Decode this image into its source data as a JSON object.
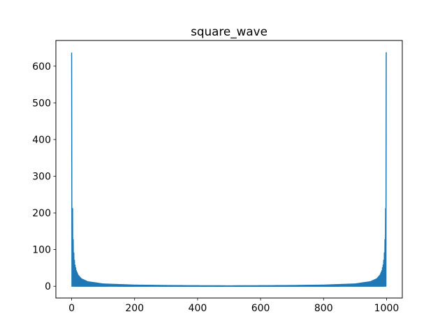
{
  "chart_data": {
    "type": "line",
    "title": "square_wave",
    "xlabel": "",
    "ylabel": "",
    "xlim": [
      -50,
      1050
    ],
    "ylim": [
      -32,
      670
    ],
    "x_ticks": [
      0,
      200,
      400,
      600,
      800,
      1000
    ],
    "y_ticks": [
      0,
      100,
      200,
      300,
      400,
      500,
      600
    ],
    "grid": false,
    "legend": "none",
    "n_points": 1001,
    "series": [
      {
        "color": "#1f77b4",
        "x": [
          0,
          1,
          3,
          5,
          7,
          9,
          11,
          15,
          21,
          31,
          51,
          101,
          201,
          301,
          401,
          499,
          501,
          599,
          699,
          799,
          899,
          949,
          969,
          979,
          985,
          989,
          991,
          993,
          995,
          997,
          999,
          1000
        ],
        "values": [
          637,
          0,
          212,
          127,
          91,
          71,
          58,
          42.5,
          30.3,
          20.5,
          12.5,
          6.3,
          3.2,
          2.1,
          1.6,
          1.3,
          1.3,
          1.6,
          2.1,
          3.2,
          6.3,
          12.5,
          20.5,
          30.3,
          42.5,
          58,
          71,
          91,
          127,
          212,
          637,
          0
        ]
      }
    ]
  }
}
